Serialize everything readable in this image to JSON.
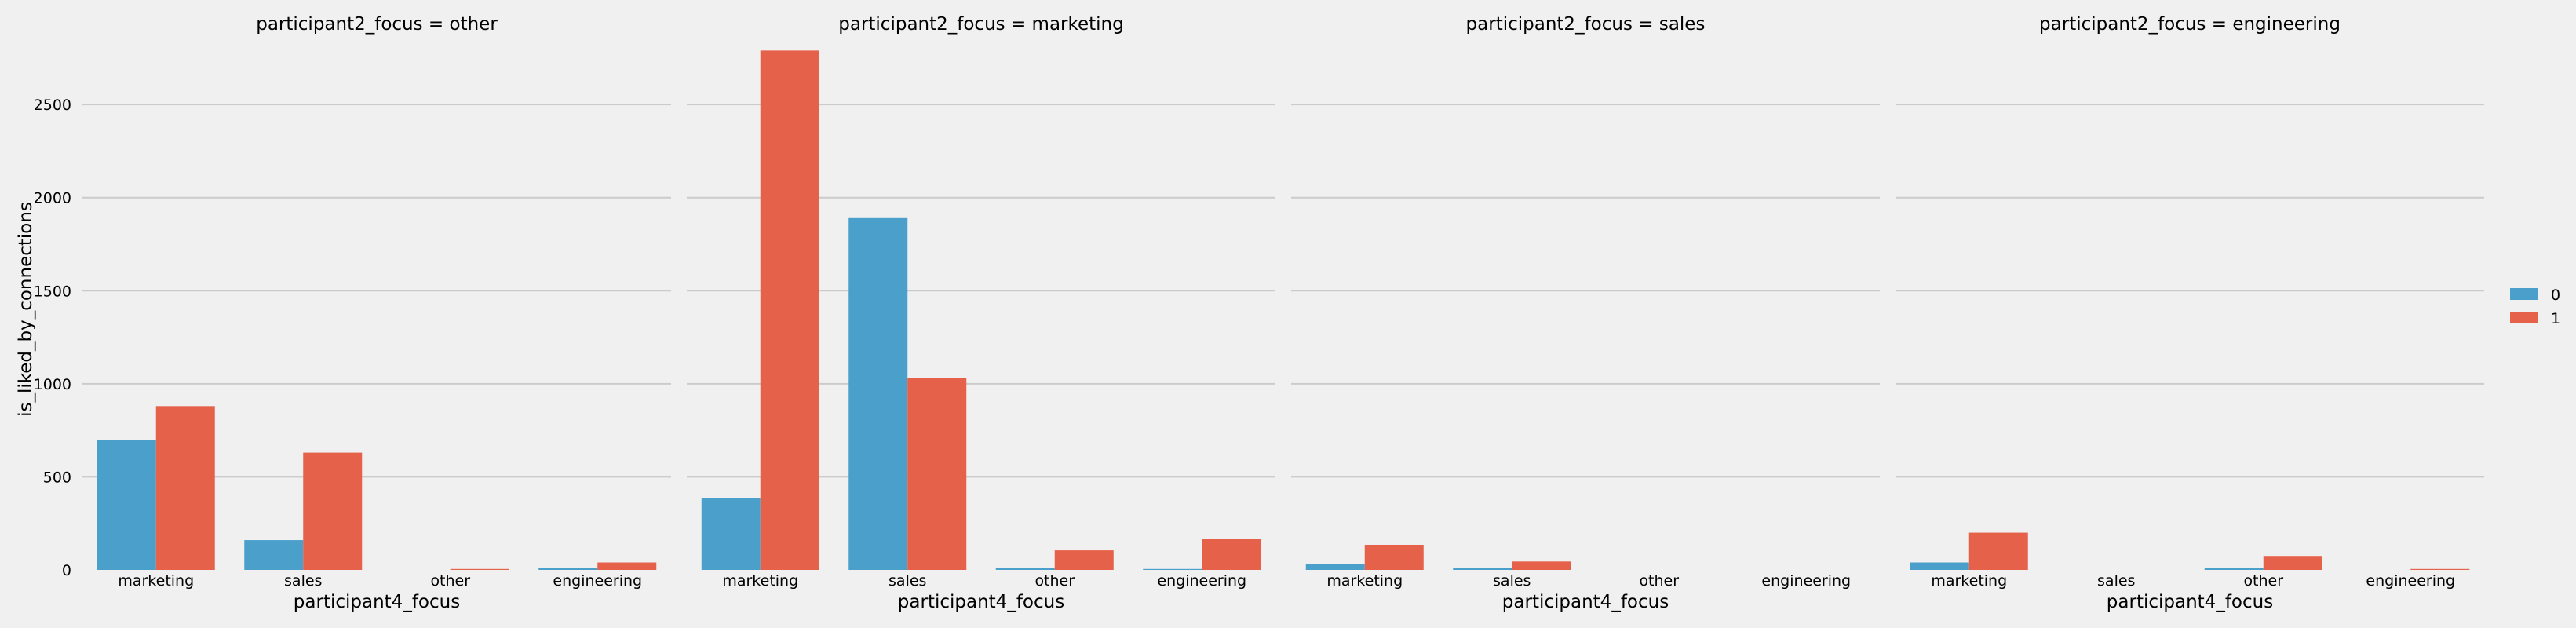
{
  "chart_data": {
    "type": "bar",
    "ylabel": "is_liked_by_connections",
    "xlabel": "participant4_focus",
    "ylim": [
      0,
      2800
    ],
    "yticks": [
      0,
      500,
      1000,
      1500,
      2000,
      2500
    ],
    "grid": true,
    "legend_position": "right",
    "legend": [
      {
        "label": "0",
        "color": "#4b9fcb"
      },
      {
        "label": "1",
        "color": "#e5614a"
      }
    ],
    "panels": [
      {
        "title": "participant2_focus = other",
        "categories": [
          "marketing",
          "sales",
          "other",
          "engineering"
        ],
        "series": [
          {
            "name": "0",
            "values": [
              700,
              160,
              0,
              10
            ]
          },
          {
            "name": "1",
            "values": [
              880,
              630,
              5,
              40
            ]
          }
        ]
      },
      {
        "title": "participant2_focus = marketing",
        "categories": [
          "marketing",
          "sales",
          "other",
          "engineering"
        ],
        "series": [
          {
            "name": "0",
            "values": [
              385,
              1890,
              10,
              5
            ]
          },
          {
            "name": "1",
            "values": [
              2790,
              1030,
              105,
              165
            ]
          }
        ]
      },
      {
        "title": "participant2_focus = sales",
        "categories": [
          "marketing",
          "sales",
          "other",
          "engineering"
        ],
        "series": [
          {
            "name": "0",
            "values": [
              30,
              10,
              0,
              0
            ]
          },
          {
            "name": "1",
            "values": [
              135,
              45,
              0,
              0
            ]
          }
        ]
      },
      {
        "title": "participant2_focus = engineering",
        "categories": [
          "marketing",
          "sales",
          "other",
          "engineering"
        ],
        "series": [
          {
            "name": "0",
            "values": [
              40,
              0,
              10,
              0
            ]
          },
          {
            "name": "1",
            "values": [
              200,
              0,
              75,
              5
            ]
          }
        ]
      }
    ]
  }
}
